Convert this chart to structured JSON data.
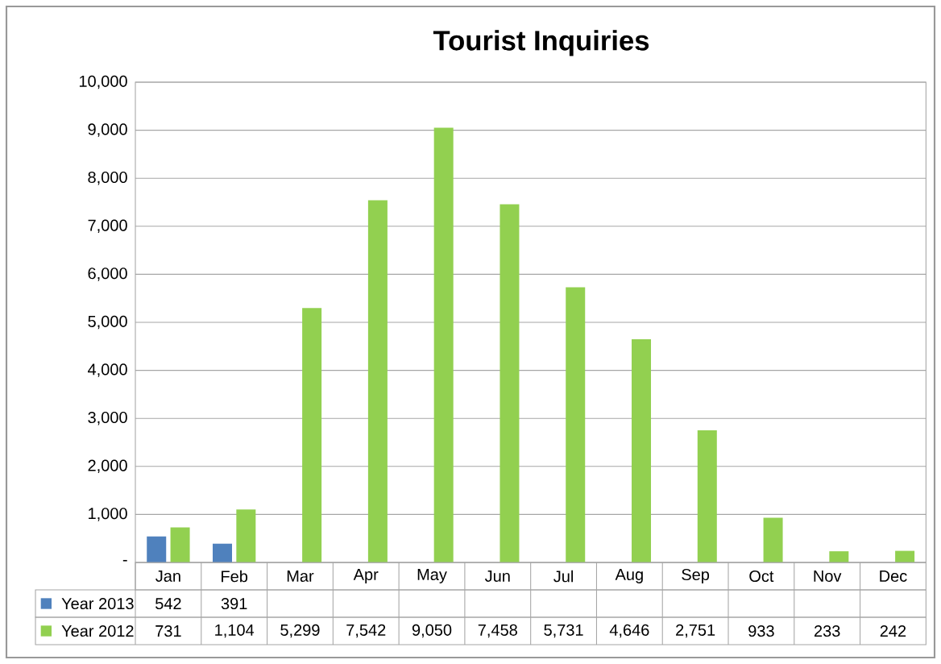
{
  "chart_data": {
    "type": "bar",
    "title": "Tourist Inquiries",
    "categories": [
      "Jan",
      "Feb",
      "Mar",
      "Apr",
      "May",
      "Jun",
      "Jul",
      "Aug",
      "Sep",
      "Oct",
      "Nov",
      "Dec"
    ],
    "series": [
      {
        "name": "Year 2013",
        "color": "#4f81bd",
        "values": [
          542,
          391,
          null,
          null,
          null,
          null,
          null,
          null,
          null,
          null,
          null,
          null
        ],
        "value_labels": [
          "542",
          "391",
          null,
          null,
          null,
          null,
          null,
          null,
          null,
          null,
          null,
          null
        ]
      },
      {
        "name": "Year 2012",
        "color": "#92d050",
        "values": [
          731,
          1104,
          5299,
          7542,
          9050,
          7458,
          5731,
          4646,
          2751,
          933,
          233,
          242
        ],
        "value_labels": [
          "731",
          "1,104",
          "5,299",
          "7,542",
          "9,050",
          "7,458",
          "5,731",
          "4,646",
          "2,751",
          "933",
          "233",
          "242"
        ]
      }
    ],
    "ylim": [
      0,
      10000
    ],
    "yticks": [
      {
        "value": 0,
        "label": "-"
      },
      {
        "value": 1000,
        "label": "1,000"
      },
      {
        "value": 2000,
        "label": "2,000"
      },
      {
        "value": 3000,
        "label": "3,000"
      },
      {
        "value": 4000,
        "label": "4,000"
      },
      {
        "value": 5000,
        "label": "5,000"
      },
      {
        "value": 6000,
        "label": "6,000"
      },
      {
        "value": 7000,
        "label": "7,000"
      },
      {
        "value": 8000,
        "label": "8,000"
      },
      {
        "value": 9000,
        "label": "9,000"
      },
      {
        "value": 10000,
        "label": "10,000"
      }
    ],
    "grid": "y",
    "legend": "bottom"
  }
}
